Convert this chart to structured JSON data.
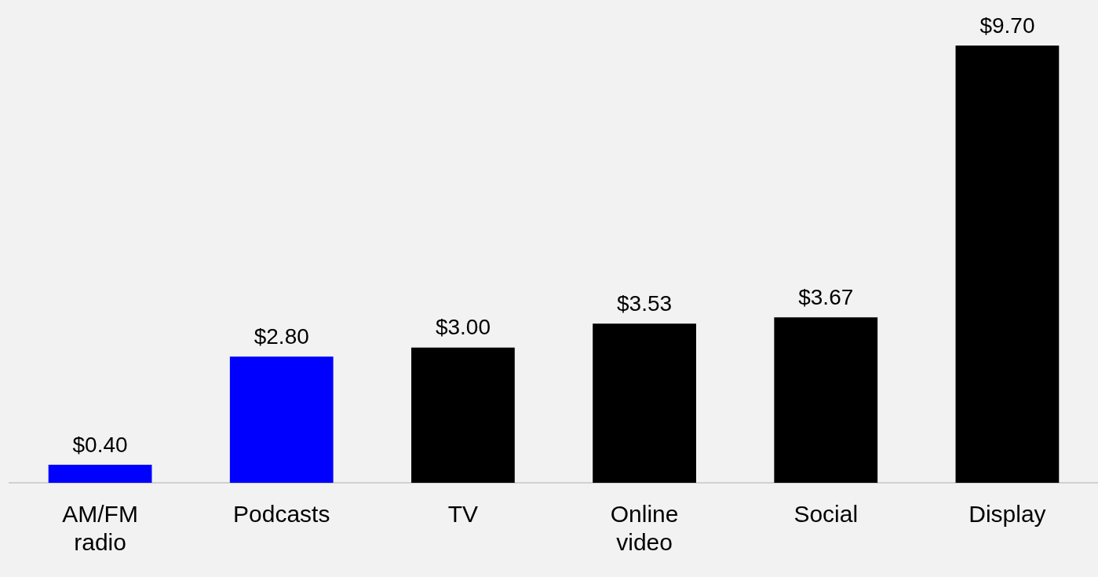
{
  "chart_data": {
    "type": "bar",
    "categories": [
      "AM/FM radio",
      "Podcasts",
      "TV",
      "Online video",
      "Social",
      "Display"
    ],
    "values": [
      0.4,
      2.8,
      3.0,
      3.53,
      3.67,
      9.7
    ],
    "colors": [
      "#0000ff",
      "#0000ff",
      "#000000",
      "#000000",
      "#000000",
      "#000000"
    ],
    "value_labels": [
      "$0.40",
      "$2.80",
      "$3.00",
      "$3.53",
      "$3.67",
      "$9.70"
    ],
    "grid": false,
    "legend": false
  }
}
